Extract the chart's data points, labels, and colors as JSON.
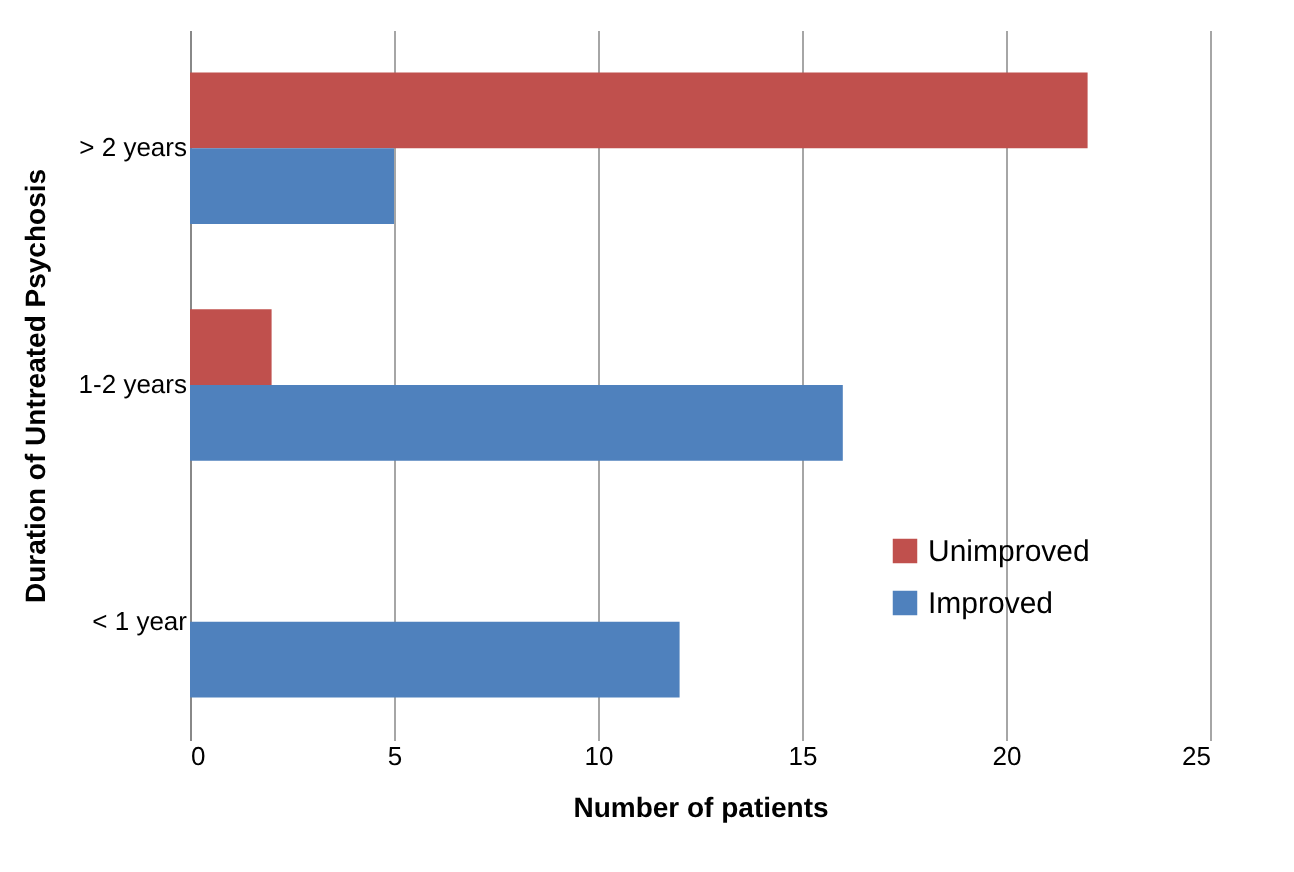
{
  "chart_data": {
    "type": "bar",
    "orientation": "horizontal",
    "xlabel": "Number of patients",
    "ylabel": "Duration of Untreated Psychosis",
    "categories": [
      "> 2 years",
      "1-2 years",
      "< 1 year"
    ],
    "series": [
      {
        "name": "Unimproved",
        "color": "#c0504d",
        "values": [
          22,
          2,
          0
        ]
      },
      {
        "name": "Improved",
        "color": "#4f81bd",
        "values": [
          5,
          16,
          12
        ]
      }
    ],
    "xlim": [
      0,
      25
    ],
    "xticks": [
      0,
      5,
      10,
      15,
      20,
      25
    ],
    "grid": "x",
    "legend": "bottom right"
  }
}
